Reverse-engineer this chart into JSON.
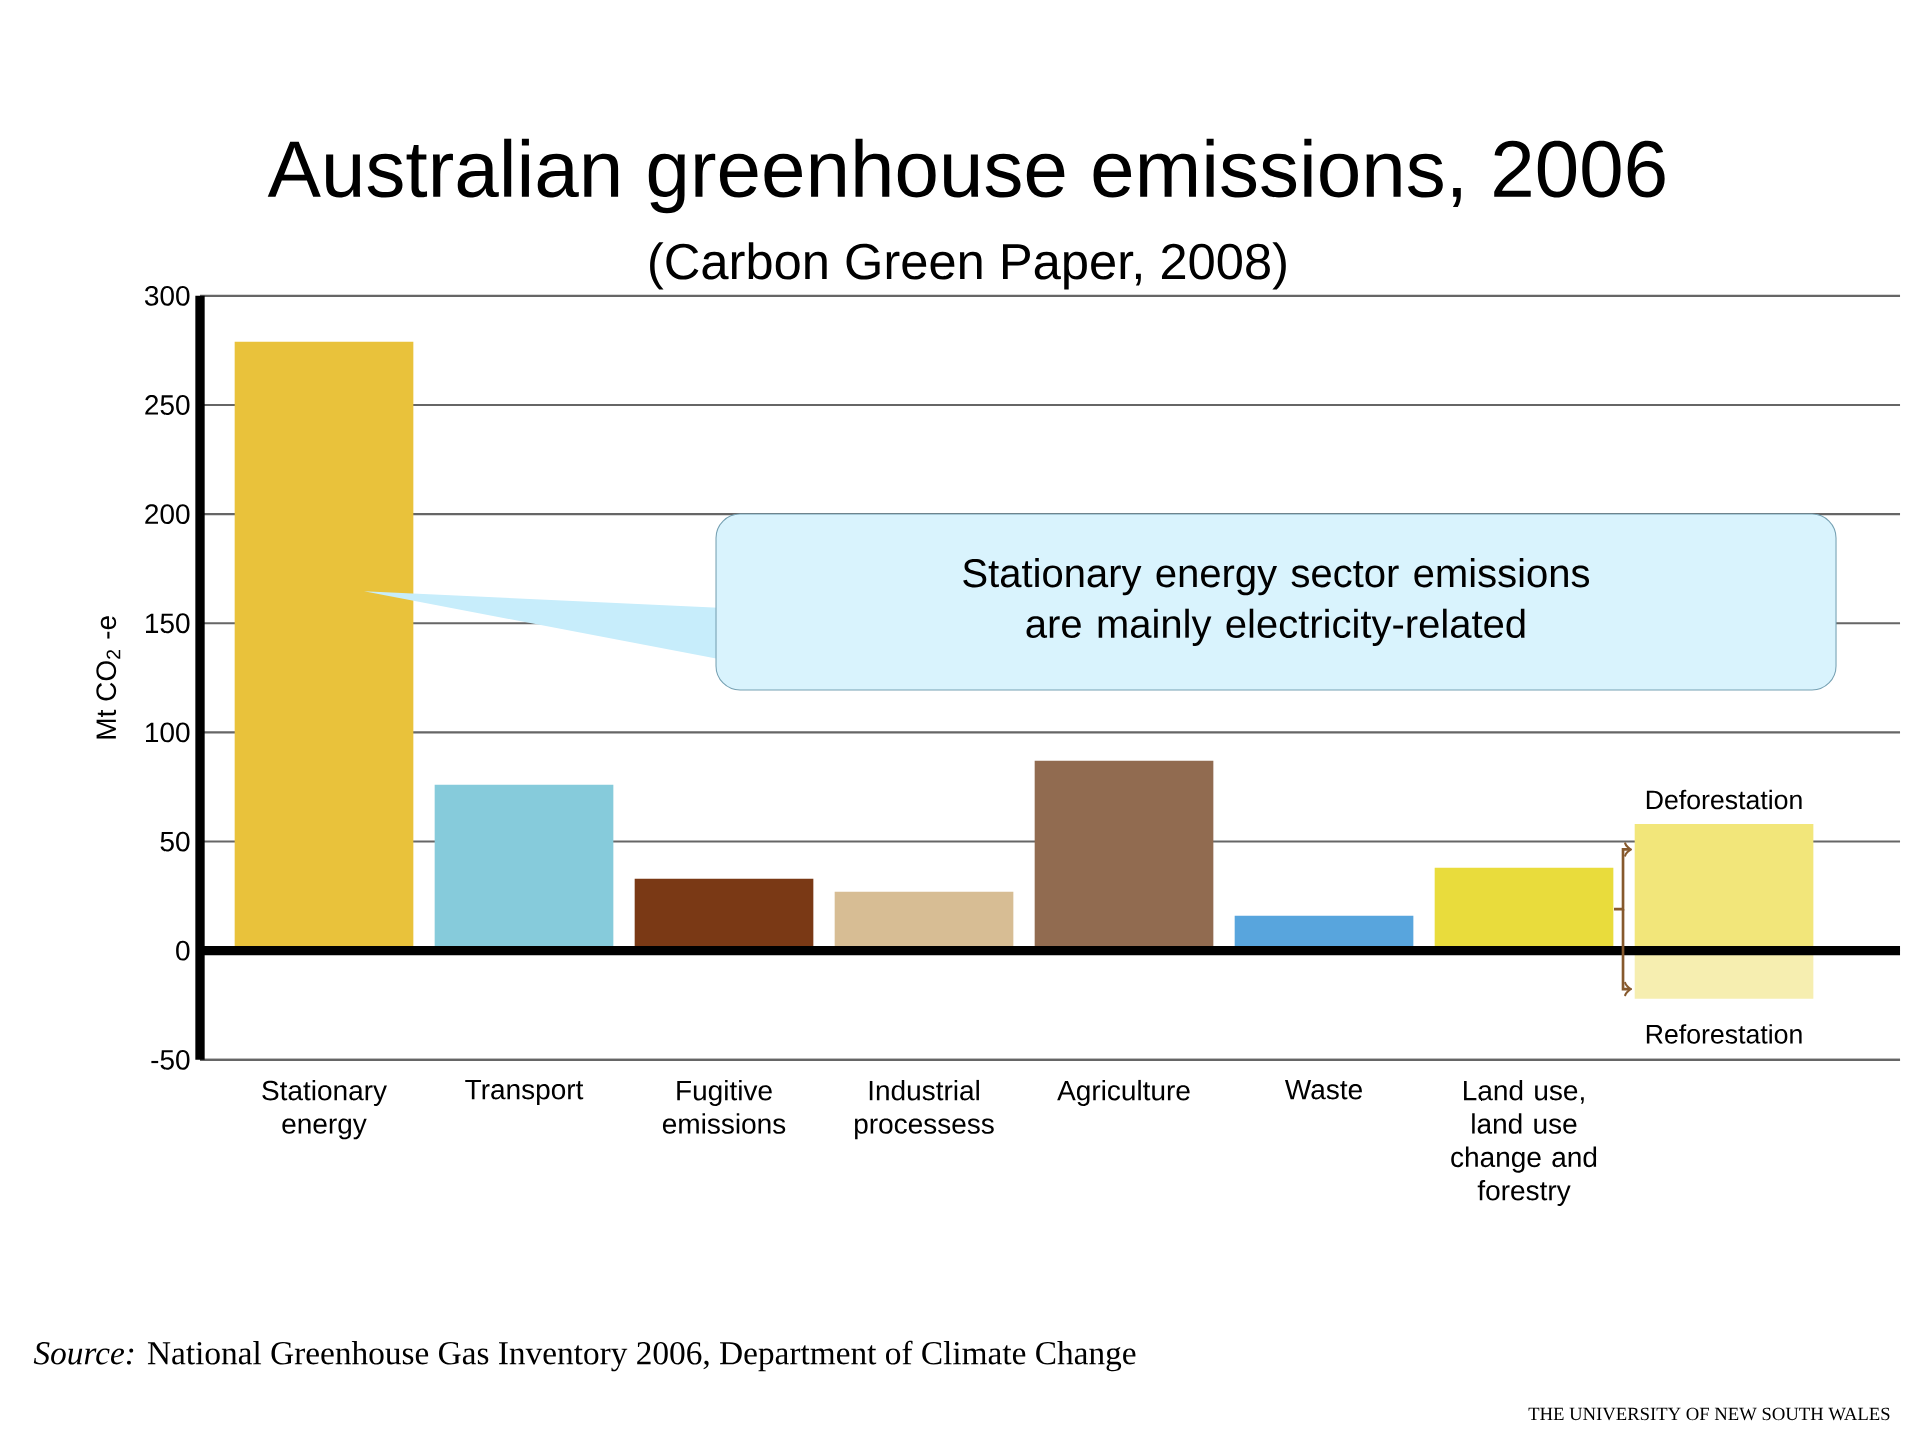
{
  "chart_data": {
    "type": "bar",
    "title": "Australian greenhouse emissions, 2006",
    "subtitle": "(Carbon Green Paper, 2008)",
    "ylabel": "Mt CO$_{2}$ -e",
    "categories": [
      "Stationary energy",
      "Transport",
      "Fugitive emissions",
      "Industrial processess",
      "Agriculture",
      "Waste",
      "Land use, land use change and forestry",
      null
    ],
    "series": [
      {
        "colors": [
          "#e9c23b",
          "#86cbdb",
          "#7a3915",
          "#d7bd94",
          "#916b50",
          "#58a5dd",
          "#e9dc3c",
          "#f2e67a"
        ],
        "values": [
          279,
          76,
          33,
          27,
          87,
          16,
          38,
          58
        ]
      },
      {
        "colors": [
          null,
          null,
          null,
          null,
          null,
          null,
          null,
          "#f6eeb0"
        ],
        "values": [
          null,
          null,
          null,
          null,
          null,
          null,
          null,
          -22
        ]
      }
    ],
    "ylim": [
      -50,
      300
    ],
    "yticks": [
      -50,
      0,
      50,
      100,
      150,
      200,
      250,
      300
    ],
    "grid": "y",
    "ref_lines": [
      {
        "axis": "y",
        "value": 0
      }
    ],
    "annotations": [
      "Stationary energy sector emissions are mainly electricity-related",
      "Deforestation",
      "Reforestation",
      "*Source:* National Greenhouse Gas Inventory 2006, Department of Climate Change",
      "THE UNIVERSITY OF NEW SOUTH WALES"
    ]
  }
}
